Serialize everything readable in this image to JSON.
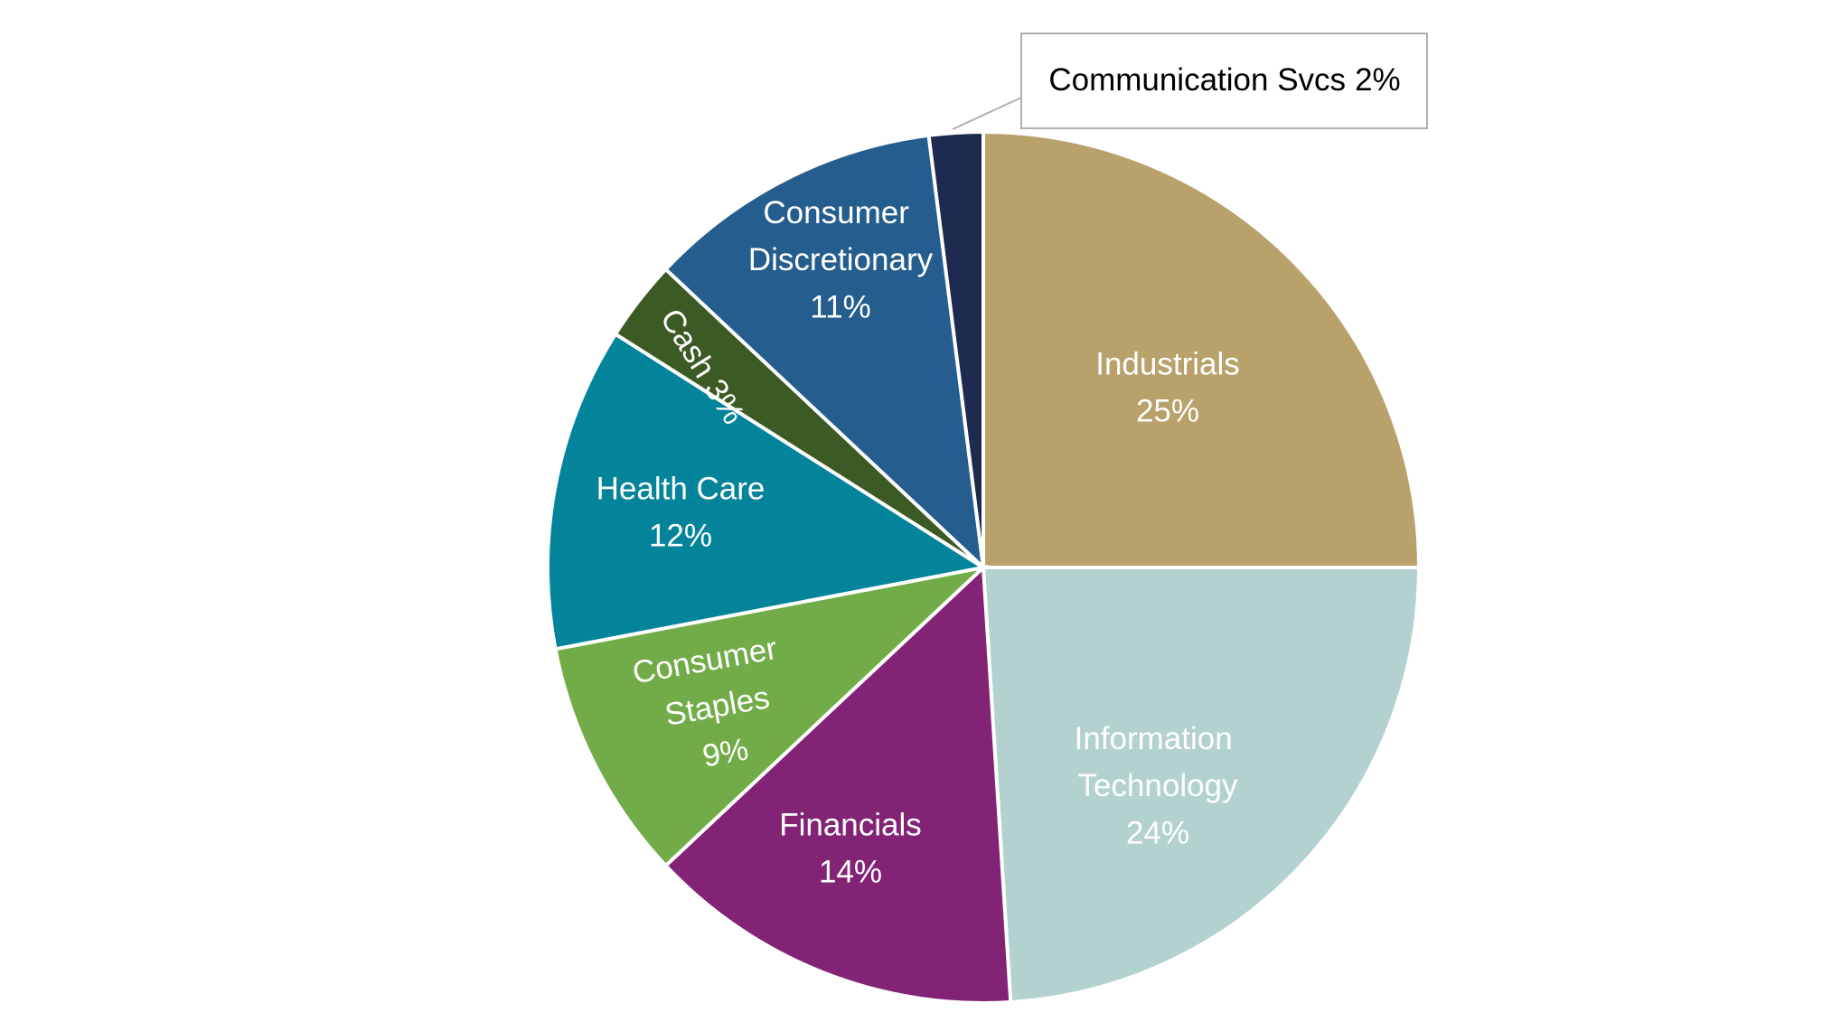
{
  "chart_data": {
    "type": "pie",
    "categories": [
      "Industrials",
      "Information Technology",
      "Financials",
      "Consumer Staples",
      "Health Care",
      "Cash",
      "Consumer Discretionary",
      "Communication Svcs"
    ],
    "values": [
      25,
      24,
      14,
      9,
      12,
      3,
      11,
      2
    ],
    "value_labels": [
      "25%",
      "24%",
      "14%",
      "9%",
      "12%",
      "3%",
      "11%",
      "2%"
    ],
    "colors": [
      "#b9a16b",
      "#b3d2cf",
      "#822376",
      "#72ac48",
      "#03849a",
      "#3b5a24",
      "#245d8e",
      "#1e2a4f"
    ]
  }
}
